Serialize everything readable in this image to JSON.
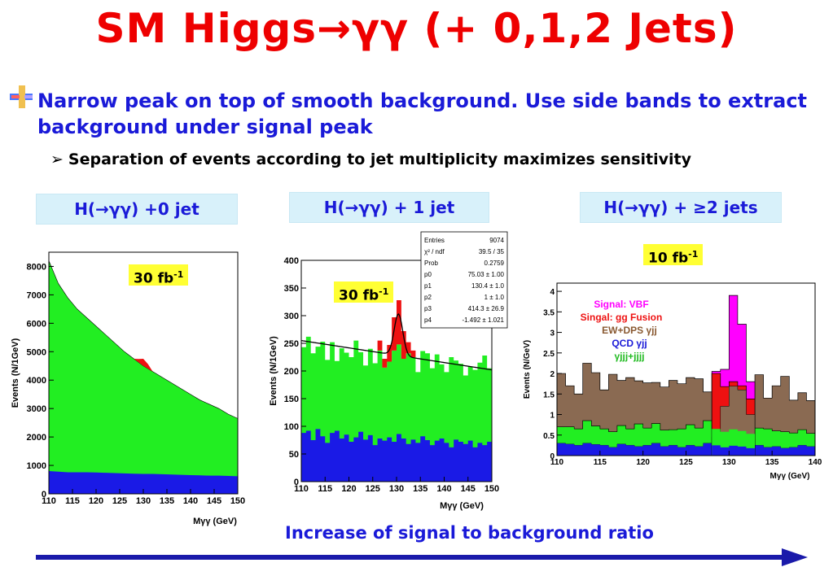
{
  "slide": {
    "title_prefix": "SM Higgs",
    "title_arrow": "→",
    "title_gg": "γγ",
    "title_suffix": " (+ 0,1,2 Jets)",
    "bullet1": "Narrow peak on top of smooth background. Use side bands to extract background under signal peak",
    "bullet2": "Separation of events according to jet multiplicity maximizes sensitivity",
    "footer": "Increase of signal to background ratio"
  },
  "panels": [
    {
      "label": "H(→γγ) +0 jet",
      "lumi_base": "30 fb",
      "lumi_exp": "-1"
    },
    {
      "label": "H(→γγ) + 1 jet",
      "lumi_base": "30 fb",
      "lumi_exp": "-1"
    },
    {
      "label": "H(→γγ) + ≥2 jets",
      "lumi_base": "10 fb",
      "lumi_exp": "-1"
    }
  ],
  "colors": {
    "title": "#ee0000",
    "text_blue": "#1a1ad8",
    "green": "#22ee22",
    "blue": "#1a1ae6",
    "red": "#ee1111",
    "magenta": "#ff00ff",
    "brown": "#8a6a52",
    "arrow": "#1a1aaa",
    "label_bg": "#d8f1fa",
    "lumi_bg": "#ffff33"
  },
  "stats_box": {
    "rows": [
      [
        "Entries",
        "9074"
      ],
      [
        "χ² / ndf",
        "39.5 / 35"
      ],
      [
        "Prob",
        "0.2759"
      ],
      [
        "p0",
        "75.03 ± 1.00"
      ],
      [
        "p1",
        "130.4 ± 1.0"
      ],
      [
        "p2",
        "1 ± 1.0"
      ],
      [
        "p3",
        "414.3 ± 26.9"
      ],
      [
        "p4",
        "-1.492 ± 1.021"
      ]
    ]
  },
  "chart_data": [
    {
      "type": "area",
      "title": "",
      "ylabel": "Events (N/1GeV)",
      "xlabel": "Mγγ (GeV)",
      "xlim": [
        110,
        150
      ],
      "ylim": [
        0,
        8500
      ],
      "xticks": [
        110,
        115,
        120,
        125,
        130,
        135,
        140,
        145,
        150
      ],
      "yticks": [
        0,
        1000,
        2000,
        3000,
        4000,
        5000,
        6000,
        7000,
        8000
      ],
      "series": [
        {
          "values_x": [
            110,
            112,
            114,
            116,
            118,
            120,
            122,
            124,
            126,
            128,
            130,
            132,
            134,
            136,
            138,
            140,
            142,
            144,
            146,
            148,
            150
          ],
          "values": [
            800,
            780,
            760,
            760,
            760,
            750,
            740,
            730,
            720,
            710,
            700,
            700,
            690,
            680,
            670,
            660,
            650,
            640,
            640,
            630,
            620
          ]
        },
        {
          "values_x": [
            110,
            112,
            114,
            116,
            118,
            120,
            122,
            124,
            126,
            128,
            130,
            132,
            134,
            136,
            138,
            140,
            142,
            144,
            146,
            148,
            150
          ],
          "values": [
            8200,
            7400,
            6900,
            6500,
            6200,
            5900,
            5600,
            5300,
            5000,
            4750,
            4500,
            4300,
            4100,
            3900,
            3700,
            3500,
            3300,
            3150,
            3000,
            2800,
            2650
          ]
        },
        {
          "values_x": [
            128,
            129,
            130,
            131,
            132
          ],
          "values": [
            0,
            120,
            250,
            160,
            0
          ]
        }
      ]
    },
    {
      "type": "area",
      "title": "",
      "ylabel": "Events (N/1GeV)",
      "xlabel": "Mγγ (GeV)",
      "xlim": [
        110,
        150
      ],
      "ylim": [
        0,
        400
      ],
      "xticks": [
        110,
        115,
        120,
        125,
        130,
        135,
        140,
        145,
        150
      ],
      "yticks": [
        0,
        50,
        100,
        150,
        200,
        250,
        300,
        350,
        400
      ],
      "series": [
        {
          "values_x": [
            110,
            111,
            112,
            113,
            114,
            115,
            116,
            117,
            118,
            119,
            120,
            121,
            122,
            123,
            124,
            125,
            126,
            127,
            128,
            129,
            130,
            131,
            132,
            133,
            134,
            135,
            136,
            137,
            138,
            139,
            140,
            141,
            142,
            143,
            144,
            145,
            146,
            147,
            148,
            149
          ],
          "values": [
            88,
            92,
            75,
            95,
            82,
            70,
            88,
            92,
            78,
            85,
            72,
            80,
            90,
            76,
            84,
            66,
            78,
            74,
            80,
            72,
            86,
            78,
            68,
            76,
            70,
            82,
            75,
            66,
            74,
            78,
            70,
            62,
            76,
            72,
            68,
            74,
            62,
            70,
            66,
            72
          ]
        },
        {
          "values_x": [
            110,
            111,
            112,
            113,
            114,
            115,
            116,
            117,
            118,
            119,
            120,
            121,
            122,
            123,
            124,
            125,
            126,
            127,
            128,
            129,
            130,
            131,
            132,
            133,
            134,
            135,
            136,
            137,
            138,
            139,
            140,
            141,
            142,
            143,
            144,
            145,
            146,
            147,
            148,
            149
          ],
          "values": [
            243,
            262,
            232,
            244,
            253,
            220,
            252,
            218,
            241,
            233,
            225,
            255,
            234,
            210,
            240,
            214,
            237,
            206,
            217,
            237,
            248,
            222,
            232,
            225,
            198,
            236,
            232,
            205,
            230,
            212,
            198,
            225,
            219,
            213,
            192,
            208,
            202,
            215,
            228,
            205
          ]
        },
        {
          "values_x": [
            126,
            127,
            128,
            129,
            130,
            131,
            132,
            133
          ],
          "values": [
            18,
            16,
            30,
            60,
            80,
            50,
            20,
            12
          ]
        }
      ],
      "fit_line": {
        "x": [
          110,
          150
        ],
        "y": [
          255,
          202
        ]
      },
      "fit_peak_x": 130.4
    },
    {
      "type": "area",
      "title": "",
      "ylabel": "Events (N/GeV)",
      "xlabel": "Mγγ (GeV)",
      "xlim": [
        110,
        140
      ],
      "ylim": [
        0,
        4.2
      ],
      "xticks": [
        110,
        115,
        120,
        125,
        130,
        135,
        140
      ],
      "yticks": [
        0,
        0.5,
        1,
        1.5,
        2,
        2.5,
        3,
        3.5,
        4
      ],
      "legend": [
        {
          "name": "Signal: VBF",
          "color": "#ff00ff"
        },
        {
          "name": "Singal: gg Fusion",
          "color": "#ee1111"
        },
        {
          "name": "EW+DPS γjj",
          "color": "#8a5a32"
        },
        {
          "name": "QCD γjj",
          "color": "#1a1ad8"
        },
        {
          "name": "γjjj+jjjj",
          "color": "#22bb22"
        }
      ],
      "series": [
        {
          "name": "QCD γjj",
          "values_x": [
            110,
            111,
            112,
            113,
            114,
            115,
            116,
            117,
            118,
            119,
            120,
            121,
            122,
            123,
            124,
            125,
            126,
            127,
            128,
            129,
            130,
            131,
            132,
            133,
            134,
            135,
            136,
            137,
            138,
            139
          ],
          "values": [
            0.3,
            0.28,
            0.25,
            0.3,
            0.27,
            0.25,
            0.2,
            0.28,
            0.25,
            0.22,
            0.25,
            0.3,
            0.22,
            0.25,
            0.2,
            0.25,
            0.22,
            0.3,
            0.25,
            0.2,
            0.24,
            0.22,
            0.18,
            0.25,
            0.2,
            0.22,
            0.18,
            0.2,
            0.25,
            0.22
          ]
        },
        {
          "name": "γjjj+jjjj",
          "values_x": [
            110,
            111,
            112,
            113,
            114,
            115,
            116,
            117,
            118,
            119,
            120,
            121,
            122,
            123,
            124,
            125,
            126,
            127,
            128,
            129,
            130,
            131,
            132,
            133,
            134,
            135,
            136,
            137,
            138,
            139
          ],
          "values": [
            0.4,
            0.42,
            0.4,
            0.55,
            0.45,
            0.4,
            0.38,
            0.45,
            0.4,
            0.55,
            0.42,
            0.48,
            0.4,
            0.38,
            0.45,
            0.5,
            0.45,
            0.55,
            0.4,
            0.38,
            0.4,
            0.38,
            0.35,
            0.42,
            0.45,
            0.38,
            0.4,
            0.35,
            0.38,
            0.32
          ]
        },
        {
          "name": "EW+DPS γjj",
          "values_x": [
            110,
            111,
            112,
            113,
            114,
            115,
            116,
            117,
            118,
            119,
            120,
            121,
            122,
            123,
            124,
            125,
            126,
            127,
            128,
            129,
            130,
            131,
            132,
            133,
            134,
            135,
            136,
            137,
            138,
            139
          ],
          "values": [
            1.3,
            1.0,
            0.85,
            1.4,
            1.3,
            0.95,
            1.4,
            1.1,
            1.25,
            1.05,
            1.1,
            1.0,
            1.05,
            1.2,
            1.1,
            1.15,
            1.2,
            0.7,
            1.35,
            1.1,
            1.05,
            1.0,
            0.85,
            1.3,
            0.75,
            1.1,
            1.35,
            0.8,
            0.9,
            0.8
          ]
        },
        {
          "name": "Singal: gg Fusion",
          "values_x": [
            128,
            129,
            130,
            131,
            132
          ],
          "values": [
            0.45,
            1.2,
            1.8,
            1.7,
            1.0
          ]
        },
        {
          "name": "Signal: VBF",
          "values_x": [
            128,
            129,
            130,
            131,
            132
          ],
          "values": [
            1.5,
            2.1,
            3.9,
            3.2,
            1.8
          ]
        }
      ]
    }
  ]
}
